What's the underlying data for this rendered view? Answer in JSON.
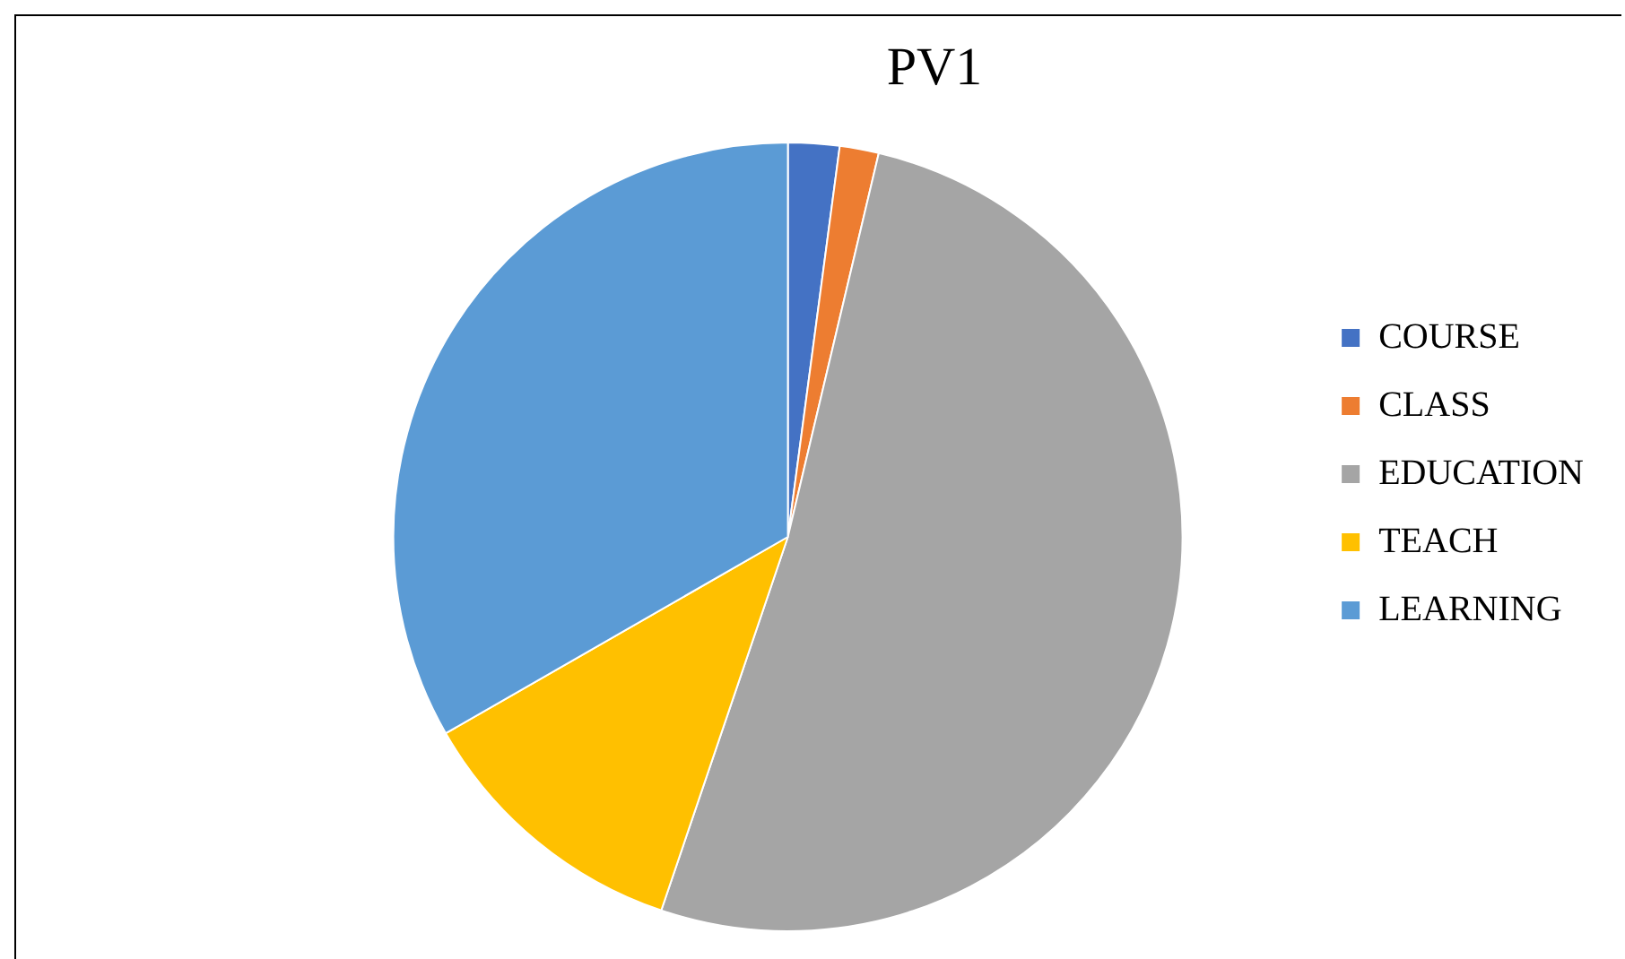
{
  "chart_data": {
    "type": "pie",
    "title": "PV1",
    "categories": [
      "COURSE",
      "CLASS",
      "EDUCATION",
      "TEACH",
      "LEARNING"
    ],
    "values": [
      2.1,
      1.6,
      51.5,
      11.5,
      33.3
    ],
    "colors": [
      "#4472c4",
      "#ed7d31",
      "#a5a5a5",
      "#ffc000",
      "#5b9bd5"
    ],
    "legend": "right"
  }
}
